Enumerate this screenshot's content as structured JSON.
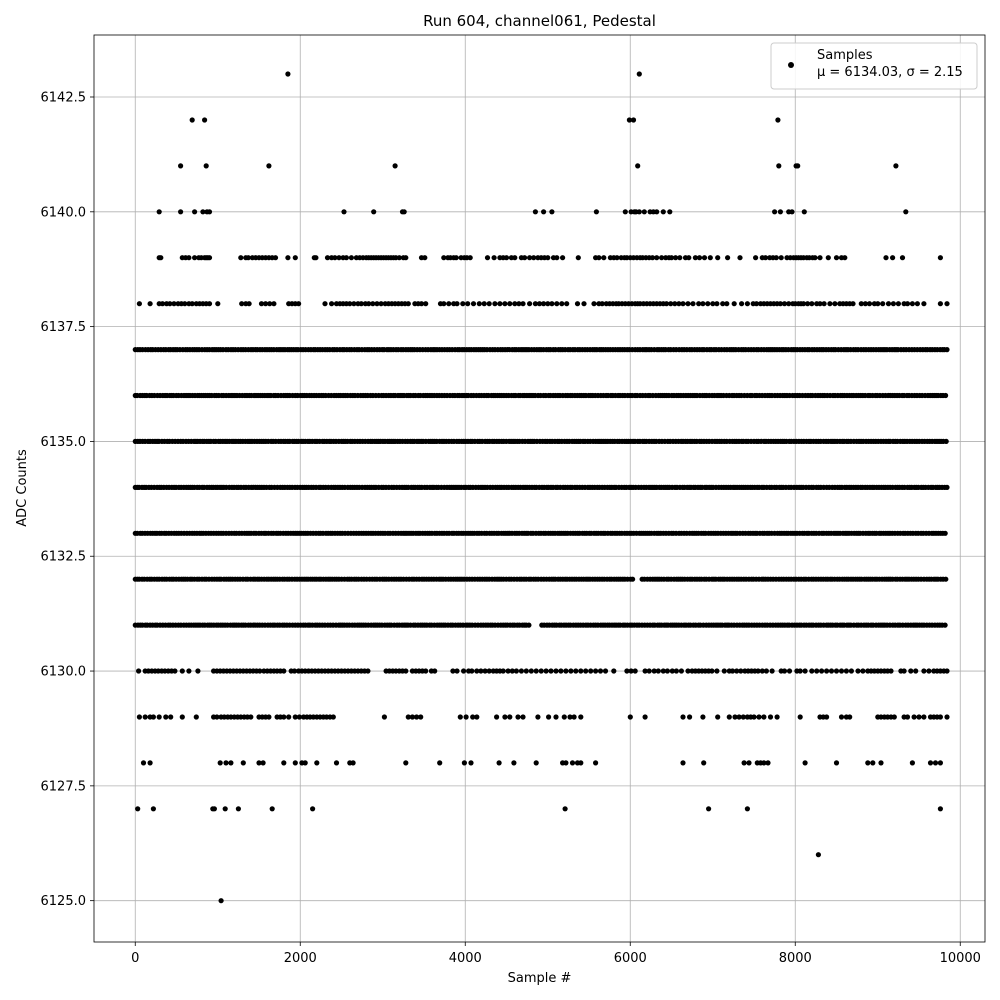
{
  "chart_data": {
    "type": "scatter",
    "title": "Run 604, channel061, Pedestal",
    "xlabel": "Sample #",
    "ylabel": "ADC Counts",
    "xlim": [
      -500,
      10300
    ],
    "ylim": [
      6124.1,
      6143.85
    ],
    "xticks": [
      0,
      2000,
      4000,
      6000,
      8000,
      10000
    ],
    "xtick_labels": [
      "0",
      "2000",
      "4000",
      "6000",
      "8000",
      "10000"
    ],
    "yticks": [
      6125.0,
      6127.5,
      6130.0,
      6132.5,
      6135.0,
      6137.5,
      6140.0,
      6142.5
    ],
    "ytick_labels": [
      "6125.0",
      "6127.5",
      "6130.0",
      "6132.5",
      "6135.0",
      "6137.5",
      "6140.0",
      "6142.5"
    ],
    "grid": true,
    "legend_position": "upper-right",
    "marker_color": "#000000",
    "series": [
      {
        "name": "Samples",
        "stats_label": "μ = 6134.03, σ = 2.15",
        "levels": [
          {
            "y": 6137,
            "xmin": 0,
            "xmax": 9840
          },
          {
            "y": 6136,
            "xmin": 0,
            "xmax": 9840
          },
          {
            "y": 6135,
            "xmin": 0,
            "xmax": 9840
          },
          {
            "y": 6134,
            "xmin": 0,
            "xmax": 9840
          },
          {
            "y": 6133,
            "xmin": 0,
            "xmax": 9840
          },
          {
            "y": 6132,
            "xmin": 0,
            "xmax": 9840
          },
          {
            "y": 6131,
            "xmin": 0,
            "xmax": 9840
          }
        ],
        "sparse_levels": [
          {
            "y": 6139,
            "x": [
              290,
              310,
              570,
              610,
              650,
              720,
              770,
              800,
              840,
              860,
              880,
              900,
              1280,
              1340,
              1370,
              1420,
              1460,
              1500,
              1540,
              1580,
              1620,
              1660,
              1700,
              1850,
              1940,
              2170,
              2190,
              2330,
              2380,
              2420,
              2470,
              2520,
              2560,
              2620,
              2680,
              2720,
              2760,
              2800,
              2830,
              2860,
              2890,
              2920,
              2950,
              2980,
              3010,
              3040,
              3070,
              3100,
              3130,
              3160,
              3200,
              3250,
              3280,
              3470,
              3510,
              3740,
              3790,
              3820,
              3860,
              3890,
              3950,
              3990,
              4020,
              4060,
              4270,
              4350,
              4420,
              4460,
              4500,
              4560,
              4600,
              4680,
              4720,
              4780,
              4830,
              4880,
              4920,
              4960,
              5000,
              5070,
              5110,
              5180,
              5370,
              5580,
              5620,
              5680,
              5760,
              5800,
              5840,
              5890,
              5930,
              5960,
              6000,
              6040,
              6080,
              6120,
              6150,
              6190,
              6230,
              6270,
              6320,
              6380,
              6430,
              6470,
              6500,
              6550,
              6600,
              6670,
              6710,
              6790,
              6840,
              6900,
              6970,
              7060,
              7180,
              7330,
              7520,
              7600,
              7640,
              7690,
              7730,
              7770,
              7830,
              7900,
              7940,
              7980,
              8010,
              8040,
              8070,
              8100,
              8140,
              8170,
              8210,
              8240,
              8300,
              8400,
              8500,
              8560,
              8600,
              9100,
              9180,
              9300,
              9760
            ]
          },
          {
            "y": 6138,
            "x": [
              50,
              180,
              290,
              330,
              380,
              420,
              470,
              520,
              560,
              600,
              650,
              690,
              740,
              780,
              820,
              860,
              900,
              1000,
              1290,
              1340,
              1380,
              1530,
              1580,
              1630,
              1680,
              1860,
              1900,
              1940,
              1980,
              2300,
              2380,
              2440,
              2480,
              2520,
              2560,
              2600,
              2650,
              2700,
              2740,
              2790,
              2830,
              2880,
              2930,
              2980,
              3030,
              3070,
              3110,
              3150,
              3190,
              3230,
              3270,
              3310,
              3390,
              3430,
              3470,
              3520,
              3700,
              3740,
              3800,
              3860,
              3900,
              3970,
              4030,
              4100,
              4170,
              4230,
              4290,
              4360,
              4420,
              4480,
              4540,
              4600,
              4650,
              4700,
              4780,
              4850,
              4900,
              4950,
              5000,
              5050,
              5110,
              5170,
              5230,
              5360,
              5440,
              5560,
              5620,
              5660,
              5710,
              5750,
              5790,
              5830,
              5860,
              5900,
              5940,
              5980,
              6020,
              6060,
              6090,
              6120,
              6160,
              6200,
              6240,
              6280,
              6320,
              6360,
              6400,
              6440,
              6490,
              6540,
              6590,
              6640,
              6700,
              6760,
              6830,
              6880,
              6940,
              7000,
              7050,
              7120,
              7170,
              7260,
              7350,
              7420,
              7490,
              7530,
              7580,
              7620,
              7660,
              7700,
              7740,
              7780,
              7820,
              7870,
              7920,
              7970,
              8000,
              8040,
              8070,
              8100,
              8150,
              8200,
              8260,
              8300,
              8350,
              8420,
              8480,
              8540,
              8580,
              8620,
              8660,
              8700,
              8800,
              8850,
              8900,
              8960,
              9000,
              9060,
              9130,
              9190,
              9250,
              9320,
              9360,
              9420,
              9480,
              9560,
              9760,
              9840
            ]
          },
          {
            "y": 6130,
            "x": [
              40,
              120,
              160,
              200,
              240,
              280,
              320,
              360,
              400,
              440,
              480,
              570,
              650,
              760,
              950,
              990,
              1030,
              1070,
              1110,
              1150,
              1190,
              1230,
              1270,
              1310,
              1350,
              1390,
              1430,
              1470,
              1510,
              1560,
              1600,
              1640,
              1680,
              1720,
              1760,
              1800,
              1890,
              1930,
              1980,
              2020,
              2060,
              2100,
              2140,
              2180,
              2220,
              2260,
              2300,
              2340,
              2380,
              2420,
              2460,
              2500,
              2540,
              2580,
              2620,
              2660,
              2700,
              2740,
              2780,
              2820,
              3040,
              3080,
              3120,
              3160,
              3200,
              3240,
              3280,
              3360,
              3400,
              3440,
              3480,
              3520,
              3590,
              3630,
              3850,
              3900,
              3980,
              4040,
              4080,
              4140,
              4190,
              4240,
              4290,
              4340,
              4380,
              4420,
              4460,
              4520,
              4570,
              4620,
              4680,
              4740,
              4800,
              4860,
              4920,
              4980,
              5040,
              5100,
              5160,
              5220,
              5280,
              5340,
              5400,
              5460,
              5520,
              5580,
              5640,
              5700,
              5800,
              5960,
              6010,
              6060,
              6180,
              6230,
              6290,
              6340,
              6400,
              6450,
              6510,
              6560,
              6620,
              6700,
              6750,
              6790,
              6830,
              6870,
              6910,
              6950,
              6990,
              7050,
              7140,
              7200,
              7240,
              7290,
              7340,
              7390,
              7430,
              7470,
              7510,
              7550,
              7600,
              7650,
              7720,
              7830,
              7870,
              7930,
              8020,
              8060,
              8120,
              8200,
              8260,
              8320,
              8380,
              8440,
              8500,
              8560,
              8620,
              8680,
              8760,
              8820,
              8880,
              8920,
              8960,
              9000,
              9040,
              9080,
              9120,
              9160,
              9280,
              9320,
              9400,
              9460,
              9560,
              9620,
              9680,
              9720,
              9760,
              9800,
              9840
            ]
          },
          {
            "y": 6129,
            "x": [
              50,
              120,
              180,
              220,
              290,
              370,
              430,
              570,
              740,
              950,
              990,
              1040,
              1080,
              1120,
              1160,
              1200,
              1240,
              1280,
              1320,
              1360,
              1400,
              1500,
              1540,
              1580,
              1620,
              1720,
              1760,
              1800,
              1860,
              1940,
              1990,
              2040,
              2080,
              2120,
              2160,
              2200,
              2240,
              2280,
              2320,
              2360,
              2400,
              3020,
              3310,
              3360,
              3410,
              3460,
              3940,
              4010,
              4090,
              4140,
              4380,
              4480,
              4540,
              4640,
              4700,
              4880,
              5010,
              5100,
              5200,
              5270,
              5320,
              5400,
              6000,
              6180,
              6640,
              6720,
              6880,
              7060,
              7200,
              7270,
              7320,
              7370,
              7420,
              7460,
              7500,
              7560,
              7620,
              7700,
              7780,
              8060,
              8300,
              8340,
              8380,
              8560,
              8620,
              8660,
              9000,
              9040,
              9080,
              9120,
              9160,
              9200,
              9320,
              9360,
              9440,
              9500,
              9560,
              9640,
              9680,
              9720,
              9760,
              9840
            ]
          },
          {
            "y": 6128,
            "x": [
              100,
              180,
              1030,
              1100,
              1160,
              1310,
              1500,
              1550,
              1800,
              1940,
              2020,
              2060,
              2200,
              2440,
              2600,
              2640,
              3280,
              3690,
              3990,
              4070,
              4410,
              4590,
              4860,
              5180,
              5220,
              5300,
              5360,
              5400,
              5580,
              6640,
              6890,
              7380,
              7440,
              7540,
              7580,
              7620,
              7670,
              8120,
              8500,
              8880,
              8940,
              9040,
              9420,
              9640,
              9700,
              9760
            ]
          },
          {
            "y": 6127,
            "x": [
              30,
              220,
              940,
              960,
              1090,
              1250,
              1660,
              2150,
              5210,
              6950,
              7420,
              9760
            ]
          },
          {
            "y": 6140,
            "x": [
              290,
              550,
              720,
              820,
              870,
              900,
              2530,
              2890,
              3240,
              3260,
              4850,
              4950,
              5050,
              5590,
              5940,
              6010,
              6050,
              6070,
              6110,
              6170,
              6240,
              6280,
              6320,
              6400,
              6480,
              7750,
              7820,
              7920,
              7960,
              8110,
              9340
            ]
          },
          {
            "y": 6141,
            "x": [
              550,
              860,
              1620,
              3150,
              6090,
              7800,
              8010,
              8030,
              9220
            ]
          },
          {
            "y": 6142,
            "x": [
              690,
              840,
              5990,
              6040,
              7790
            ]
          },
          {
            "y": 6143,
            "x": [
              1850,
              6110
            ]
          },
          {
            "y": 6126,
            "x": [
              8280
            ]
          },
          {
            "y": 6125,
            "x": [
              1040
            ]
          }
        ],
        "gap_ranges": [
          {
            "y": 6131,
            "from": 4800,
            "to": 4900
          },
          {
            "y": 6132,
            "from": 6040,
            "to": 6120
          }
        ]
      }
    ]
  }
}
